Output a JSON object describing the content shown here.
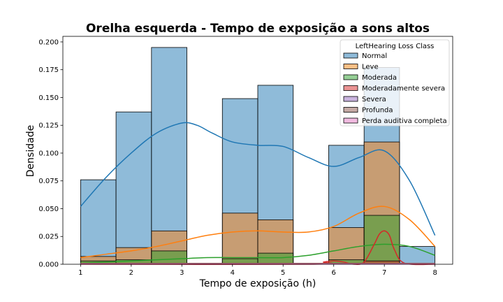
{
  "chart_data": {
    "type": "histogram",
    "title": "Orelha esquerda - Tempo de exposição a sons altos",
    "xlabel": "Tempo de exposição (h)",
    "ylabel": "Densidade",
    "xlim": [
      0.65,
      8.35
    ],
    "ylim": [
      0,
      0.205
    ],
    "x_ticks": [
      1,
      2,
      3,
      4,
      5,
      6,
      7,
      8
    ],
    "y_ticks": [
      0.0,
      0.025,
      0.05,
      0.075,
      0.1,
      0.125,
      0.15,
      0.175,
      0.2
    ],
    "y_tick_labels": [
      "0.000",
      "0.025",
      "0.050",
      "0.075",
      "0.100",
      "0.125",
      "0.150",
      "0.175",
      "0.200"
    ],
    "bin_edges": [
      1.0,
      1.7,
      2.4,
      3.1,
      3.8,
      4.5,
      5.2,
      5.9,
      6.6,
      7.3,
      8.0
    ],
    "legend": {
      "title": "LeftHearing Loss Class",
      "placement": "upper right"
    },
    "series": [
      {
        "name": "Normal",
        "color": "#1f77b4",
        "bar_values": [
          0.076,
          0.137,
          0.195,
          0,
          0.149,
          0.161,
          0,
          0.107,
          0.177,
          0.016
        ],
        "kde_x": [
          1.0,
          1.5,
          2.0,
          2.5,
          3.0,
          3.3,
          3.6,
          4.0,
          4.5,
          5.0,
          5.5,
          6.0,
          6.5,
          7.0,
          7.5,
          8.0
        ],
        "kde_y": [
          0.052,
          0.078,
          0.1,
          0.118,
          0.127,
          0.125,
          0.118,
          0.11,
          0.107,
          0.106,
          0.096,
          0.088,
          0.096,
          0.102,
          0.075,
          0.026
        ]
      },
      {
        "name": "Leve",
        "color": "#ff7f0e",
        "bar_values": [
          0.007,
          0.015,
          0.03,
          0,
          0.046,
          0.04,
          0,
          0.033,
          0.11,
          0.001
        ],
        "kde_x": [
          1.0,
          1.5,
          2.0,
          2.5,
          3.0,
          3.5,
          4.0,
          4.5,
          5.0,
          5.5,
          6.0,
          6.5,
          7.0,
          7.5,
          8.0
        ],
        "kde_y": [
          0.006,
          0.009,
          0.012,
          0.016,
          0.021,
          0.026,
          0.029,
          0.03,
          0.029,
          0.029,
          0.034,
          0.046,
          0.052,
          0.04,
          0.016
        ]
      },
      {
        "name": "Moderada",
        "color": "#2ca02c",
        "bar_values": [
          0.003,
          0.004,
          0.012,
          0,
          0.005,
          0.01,
          0,
          0.004,
          0.044,
          0.001
        ],
        "kde_x": [
          1.0,
          1.5,
          2.0,
          2.5,
          3.0,
          3.5,
          4.0,
          4.5,
          5.0,
          5.5,
          6.0,
          6.5,
          7.0,
          7.5,
          8.0
        ],
        "kde_y": [
          0.001,
          0.002,
          0.003,
          0.004,
          0.005,
          0.006,
          0.006,
          0.006,
          0.006,
          0.008,
          0.012,
          0.016,
          0.018,
          0.016,
          0.008
        ]
      },
      {
        "name": "Moderadamente severa",
        "color": "#d62728",
        "bar_values": [
          0.001,
          0.001,
          0.001,
          0,
          0.001,
          0.001,
          0,
          0.001,
          0.003,
          0
        ],
        "kde_x": [
          1.0,
          5.6,
          5.8,
          6.0,
          6.2,
          6.4,
          6.6,
          6.8,
          6.9,
          7.0,
          7.1,
          7.2,
          7.4,
          8.0
        ],
        "kde_y": [
          0.0,
          0.0,
          0.002,
          0.003,
          0.002,
          0.0,
          0.002,
          0.018,
          0.027,
          0.03,
          0.026,
          0.013,
          0.001,
          0.0
        ]
      },
      {
        "name": "Severa",
        "color": "#9467bd",
        "bar_values": [
          0,
          0,
          0,
          0,
          0,
          0,
          0,
          0,
          0,
          0
        ],
        "kde_x": [
          1.0,
          8.0
        ],
        "kde_y": [
          0.0005,
          0.0005
        ]
      },
      {
        "name": "Profunda",
        "color": "#8c564b",
        "bar_values": [
          0.001,
          0.001,
          0.001,
          0,
          0.001,
          0.001,
          0,
          0.001,
          0.001,
          0.001
        ],
        "kde_x": [
          1.0,
          8.0
        ],
        "kde_y": [
          0.0008,
          0.0008
        ]
      },
      {
        "name": "Perda auditiva completa",
        "color": "#e377c2",
        "bar_values": [
          0,
          0,
          0,
          0,
          0,
          0,
          0,
          0,
          0,
          0
        ],
        "kde_x": [
          1.0,
          8.0
        ],
        "kde_y": [
          0.0002,
          0.0002
        ]
      }
    ]
  }
}
